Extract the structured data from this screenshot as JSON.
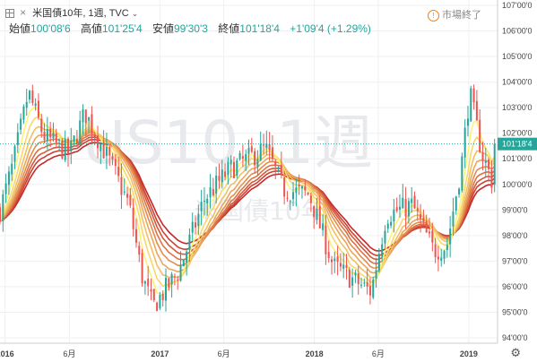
{
  "header": {
    "symbol_name": "米国債10年, 1週, TVC",
    "open_label": "始値",
    "open": "100'08'6",
    "high_label": "高値",
    "high": "101'25'4",
    "low_label": "安値",
    "low": "99'30'3",
    "close_label": "終値",
    "close": "101'18'4",
    "change": "+1'09'4 (+1.29%)",
    "market_status": "市場終了",
    "status_icon": "exclamation-icon",
    "settings_icon": "gear-icon"
  },
  "chart_data": {
    "type": "candlestick",
    "watermark": "US10, 1週",
    "watermark_sub": "米国債10年",
    "y_range": [
      94,
      107
    ],
    "y_ticks": [
      "107'00'0",
      "106'00'0",
      "105'00'0",
      "104'00'0",
      "103'00'0",
      "102'00'0",
      "101'00'0",
      "100'00'0",
      "99'00'0",
      "98'00'0",
      "97'00'0",
      "96'00'0",
      "95'00'0",
      "94'00'0"
    ],
    "x_range": [
      "2015-12-20",
      "2019-03-10"
    ],
    "x_ticks": [
      {
        "date": "2016-01-01",
        "label": "2016",
        "bold": true
      },
      {
        "date": "2016-06-01",
        "label": "6月",
        "bold": false
      },
      {
        "date": "2017-01-01",
        "label": "2017",
        "bold": true
      },
      {
        "date": "2017-06-01",
        "label": "6月",
        "bold": false
      },
      {
        "date": "2018-01-01",
        "label": "2018",
        "bold": true
      },
      {
        "date": "2018-06-01",
        "label": "6月",
        "bold": false
      },
      {
        "date": "2019-01-01",
        "label": "2019",
        "bold": true
      }
    ],
    "last_price": 101.58,
    "last_price_label": "101'18'4",
    "colors": {
      "up": "#26a69a",
      "down": "#ef5350",
      "ribbon_fast": "#fff176",
      "ribbon_slow": "#c62828",
      "grid": "#eef0f3"
    },
    "trend_anchors": [
      {
        "date": "2015-12-20",
        "price": 99.0
      },
      {
        "date": "2016-01-20",
        "price": 100.8
      },
      {
        "date": "2016-02-25",
        "price": 103.6
      },
      {
        "date": "2016-04-01",
        "price": 101.9
      },
      {
        "date": "2016-06-01",
        "price": 101.2
      },
      {
        "date": "2016-07-08",
        "price": 102.8
      },
      {
        "date": "2016-09-01",
        "price": 101.0
      },
      {
        "date": "2016-10-20",
        "price": 99.2
      },
      {
        "date": "2016-11-20",
        "price": 96.4
      },
      {
        "date": "2016-12-15",
        "price": 95.2
      },
      {
        "date": "2017-02-15",
        "price": 96.6
      },
      {
        "date": "2017-04-15",
        "price": 99.4
      },
      {
        "date": "2017-06-15",
        "price": 100.6
      },
      {
        "date": "2017-09-08",
        "price": 101.4
      },
      {
        "date": "2017-10-20",
        "price": 99.8
      },
      {
        "date": "2017-12-20",
        "price": 99.6
      },
      {
        "date": "2018-02-15",
        "price": 96.8
      },
      {
        "date": "2018-05-15",
        "price": 95.8
      },
      {
        "date": "2018-06-20",
        "price": 98.8
      },
      {
        "date": "2018-08-20",
        "price": 99.2
      },
      {
        "date": "2018-10-10",
        "price": 97.4
      },
      {
        "date": "2018-11-10",
        "price": 97.6
      },
      {
        "date": "2018-12-15",
        "price": 100.8
      },
      {
        "date": "2019-01-03",
        "price": 103.6
      },
      {
        "date": "2019-02-01",
        "price": 101.2
      },
      {
        "date": "2019-02-28",
        "price": 100.0
      },
      {
        "date": "2019-03-08",
        "price": 101.58
      }
    ],
    "ribbon_periods": [
      5,
      8,
      11,
      14,
      17,
      20,
      23,
      26,
      30
    ],
    "seed": 7
  }
}
